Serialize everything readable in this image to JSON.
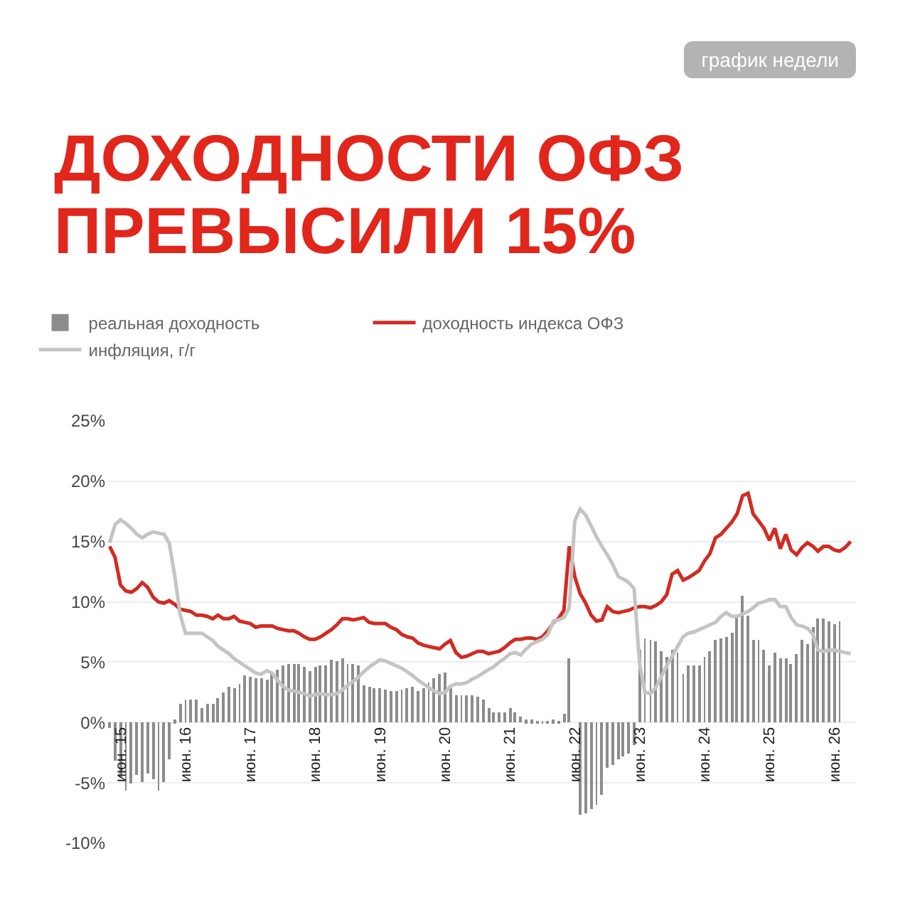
{
  "chart_data": {
    "type": "line",
    "title": "ДОХОДНОСТИ ОФЗ ПРЕВЫСИЛИ 15%",
    "annotations": [
      "график недели"
    ],
    "x": [
      "2015-04",
      "2015-05",
      "2015-06",
      "2015-07",
      "2015-08",
      "2015-09",
      "2015-10",
      "2015-11",
      "2015-12",
      "2016-01",
      "2016-02",
      "2016-03",
      "2016-04",
      "2016-05",
      "2016-06",
      "2016-07",
      "2016-08",
      "2016-09",
      "2016-10",
      "2016-11",
      "2016-12",
      "2017-01",
      "2017-02",
      "2017-03",
      "2017-04",
      "2017-05",
      "2017-06",
      "2017-07",
      "2017-08",
      "2017-09",
      "2017-10",
      "2017-11",
      "2017-12",
      "2018-01",
      "2018-02",
      "2018-03",
      "2018-04",
      "2018-05",
      "2018-06",
      "2018-07",
      "2018-08",
      "2018-09",
      "2018-10",
      "2018-11",
      "2018-12",
      "2019-01",
      "2019-02",
      "2019-03",
      "2019-04",
      "2019-05",
      "2019-06",
      "2019-07",
      "2019-08",
      "2019-09",
      "2019-10",
      "2019-11",
      "2019-12",
      "2020-01",
      "2020-02",
      "2020-03",
      "2020-04",
      "2020-05",
      "2020-06",
      "2020-07",
      "2020-08",
      "2020-09",
      "2020-10",
      "2020-11",
      "2020-12",
      "2021-01",
      "2021-02",
      "2021-03",
      "2021-04",
      "2021-05",
      "2021-06",
      "2021-07",
      "2021-08",
      "2021-09",
      "2021-10",
      "2021-11",
      "2021-12",
      "2022-01",
      "2022-02",
      "2022-03",
      "2022-04",
      "2022-05",
      "2022-06",
      "2022-07",
      "2022-08",
      "2022-09",
      "2022-10",
      "2022-11",
      "2022-12",
      "2023-01",
      "2023-02",
      "2023-03",
      "2023-04",
      "2023-05",
      "2023-06",
      "2023-07",
      "2023-08",
      "2023-09",
      "2023-10",
      "2023-11",
      "2023-12",
      "2024-01",
      "2024-02",
      "2024-03",
      "2024-04",
      "2024-05",
      "2024-06",
      "2024-07",
      "2024-08",
      "2024-09",
      "2024-10",
      "2024-11",
      "2024-12",
      "2025-01",
      "2025-02",
      "2025-03",
      "2025-04",
      "2025-05",
      "2025-06",
      "2025-07",
      "2025-08",
      "2025-09",
      "2025-10",
      "2025-11",
      "2025-12",
      "2026-01",
      "2026-02",
      "2026-03",
      "2026-04",
      "2026-05",
      "2026-06",
      "2026-07",
      "2026-08",
      "2026-09"
    ],
    "series": [
      {
        "name": "реальная доходность",
        "type": "bar",
        "color": "#8c8c8c",
        "values": [
          -0.5,
          -3.2,
          -4.6,
          -5.6,
          -5.1,
          -4.4,
          -4.9,
          -4.2,
          -4.7,
          -5.6,
          -4.9,
          -3.0,
          0.2,
          1.6,
          1.9,
          1.9,
          1.9,
          1.2,
          1.6,
          1.6,
          2.0,
          2.5,
          3.0,
          2.9,
          3.2,
          3.9,
          3.8,
          3.7,
          3.7,
          3.5,
          4.2,
          4.4,
          4.7,
          4.9,
          4.9,
          4.8,
          4.6,
          4.3,
          4.6,
          4.7,
          4.7,
          5.2,
          5.1,
          5.3,
          4.9,
          4.9,
          4.7,
          3.1,
          3.0,
          2.9,
          2.8,
          2.7,
          2.6,
          2.6,
          2.7,
          2.8,
          3.0,
          2.6,
          2.8,
          3.3,
          3.7,
          4.0,
          4.1,
          2.8,
          2.3,
          2.3,
          2.2,
          2.2,
          2.1,
          1.9,
          1.2,
          0.9,
          0.9,
          0.9,
          1.2,
          0.8,
          0.5,
          0.2,
          0.2,
          0.1,
          0.1,
          0.1,
          0.2,
          0.1,
          0.7,
          5.3,
          null,
          -7.7,
          -7.5,
          -7.2,
          -6.8,
          -6.0,
          -3.7,
          -3.5,
          -3.0,
          -2.8,
          -2.6,
          -1.9,
          6.0,
          7.0,
          6.9,
          6.7,
          5.9,
          5.4,
          6.0,
          5.8,
          4.0,
          4.7,
          4.7,
          4.7,
          5.4,
          5.9,
          6.9,
          7.0,
          7.1,
          7.5,
          8.8,
          10.5,
          8.9,
          6.9,
          6.9,
          6.0,
          4.7,
          5.8,
          5.3,
          5.3,
          4.9,
          5.7,
          6.9,
          6.5,
          7.9,
          8.6,
          8.6,
          8.4,
          8.2,
          8.4,
          null,
          null
        ]
      },
      {
        "name": "доходность индекса ОФЗ",
        "color": "#d22b22",
        "values": [
          14.6,
          13.7,
          11.4,
          10.9,
          10.8,
          11.1,
          11.6,
          11.2,
          10.4,
          10.0,
          9.9,
          10.1,
          9.8,
          9.4,
          9.3,
          9.2,
          8.9,
          8.9,
          8.8,
          8.6,
          8.9,
          8.6,
          8.6,
          8.8,
          8.4,
          8.3,
          8.2,
          7.9,
          8.0,
          8.0,
          8.0,
          7.8,
          7.7,
          7.6,
          7.6,
          7.4,
          7.1,
          6.9,
          6.9,
          7.1,
          7.4,
          7.7,
          8.1,
          8.6,
          8.6,
          8.5,
          8.6,
          8.7,
          8.3,
          8.2,
          8.2,
          8.2,
          7.9,
          7.7,
          7.3,
          7.1,
          7.0,
          6.6,
          6.4,
          6.3,
          6.2,
          6.1,
          6.5,
          6.8,
          5.8,
          5.4,
          5.5,
          5.7,
          5.9,
          5.9,
          5.7,
          5.8,
          5.9,
          6.2,
          6.6,
          6.9,
          6.9,
          7.0,
          7.0,
          6.9,
          7.1,
          7.6,
          8.3,
          8.6,
          9.3,
          14.6,
          12.1,
          10.7,
          9.9,
          8.9,
          8.4,
          8.5,
          9.6,
          9.2,
          9.1,
          9.2,
          9.3,
          9.5,
          9.6,
          9.6,
          9.5,
          9.7,
          10.0,
          10.6,
          12.3,
          12.6,
          11.8,
          12.0,
          12.3,
          12.6,
          13.4,
          14.0,
          15.3,
          15.6,
          16.1,
          16.6,
          17.3,
          18.8,
          19.0,
          17.3,
          16.7,
          16.1,
          15.1,
          16.1,
          14.4,
          15.6,
          14.3,
          13.9,
          14.5,
          14.9,
          14.6,
          14.2,
          14.6,
          14.6,
          14.3,
          14.2,
          14.5,
          15.0
        ]
      },
      {
        "name": "инфляция, г/г",
        "color": "#c4c4c4",
        "values": [
          14.9,
          16.4,
          16.8,
          16.5,
          16.1,
          15.6,
          15.3,
          15.6,
          15.8,
          15.7,
          15.6,
          14.9,
          12.2,
          9.0,
          7.4,
          7.4,
          7.4,
          7.4,
          7.1,
          6.8,
          6.3,
          6.0,
          5.7,
          5.3,
          5.0,
          4.7,
          4.4,
          4.1,
          4.0,
          4.3,
          4.1,
          3.5,
          3.0,
          2.7,
          2.6,
          2.5,
          2.4,
          2.2,
          2.3,
          2.4,
          2.3,
          2.3,
          2.4,
          2.7,
          3.1,
          3.4,
          3.8,
          4.2,
          4.6,
          4.9,
          5.2,
          5.1,
          4.9,
          4.7,
          4.5,
          4.2,
          3.9,
          3.5,
          3.2,
          2.9,
          2.6,
          2.4,
          2.5,
          3.0,
          3.2,
          3.2,
          3.3,
          3.6,
          3.8,
          4.1,
          4.4,
          4.6,
          5.0,
          5.3,
          5.7,
          5.8,
          5.6,
          6.1,
          6.5,
          6.7,
          6.9,
          7.3,
          8.4,
          8.5,
          8.7,
          9.5,
          16.7,
          17.7,
          17.2,
          16.3,
          15.4,
          14.6,
          13.9,
          13.1,
          12.1,
          11.9,
          11.6,
          11.1,
          4.9,
          2.5,
          2.4,
          2.9,
          3.8,
          4.7,
          5.5,
          6.3,
          7.1,
          7.4,
          7.5,
          7.7,
          7.9,
          8.1,
          8.3,
          8.8,
          9.1,
          8.8,
          8.8,
          9.0,
          9.2,
          9.5,
          9.9,
          10.0,
          10.2,
          10.2,
          9.6,
          9.6,
          8.7,
          8.1,
          8.0,
          7.8,
          7.3,
          6.0,
          5.9,
          6.0,
          6.0,
          5.9,
          5.8,
          5.7
        ]
      }
    ],
    "xlim": [
      "2015-03-15",
      "2026-10-01"
    ],
    "xticks": [
      {
        "value": "2015-06",
        "label": "июн. 15"
      },
      {
        "value": "2016-06",
        "label": "июн. 16"
      },
      {
        "value": "2017-06",
        "label": "июн. 17"
      },
      {
        "value": "2018-06",
        "label": "июн. 18"
      },
      {
        "value": "2019-06",
        "label": "июн. 19"
      },
      {
        "value": "2020-06",
        "label": "июн. 20"
      },
      {
        "value": "2021-06",
        "label": "июн. 21"
      },
      {
        "value": "2022-06",
        "label": "июн. 22"
      },
      {
        "value": "2023-06",
        "label": "июн. 23"
      },
      {
        "value": "2024-06",
        "label": "июн. 24"
      },
      {
        "value": "2025-06",
        "label": "июн. 25"
      },
      {
        "value": "2026-06",
        "label": "июн. 26"
      }
    ],
    "ylim": [
      -10,
      25
    ],
    "yticks": [
      {
        "value": -10,
        "label": "-10%"
      },
      {
        "value": -5,
        "label": "-5%"
      },
      {
        "value": 0,
        "label": "0%"
      },
      {
        "value": 5,
        "label": "5%"
      },
      {
        "value": 10,
        "label": "10%"
      },
      {
        "value": 15,
        "label": "15%"
      },
      {
        "value": 20,
        "label": "20%"
      },
      {
        "value": 25,
        "label": "25%"
      }
    ],
    "grid": "y",
    "legend": "top"
  }
}
